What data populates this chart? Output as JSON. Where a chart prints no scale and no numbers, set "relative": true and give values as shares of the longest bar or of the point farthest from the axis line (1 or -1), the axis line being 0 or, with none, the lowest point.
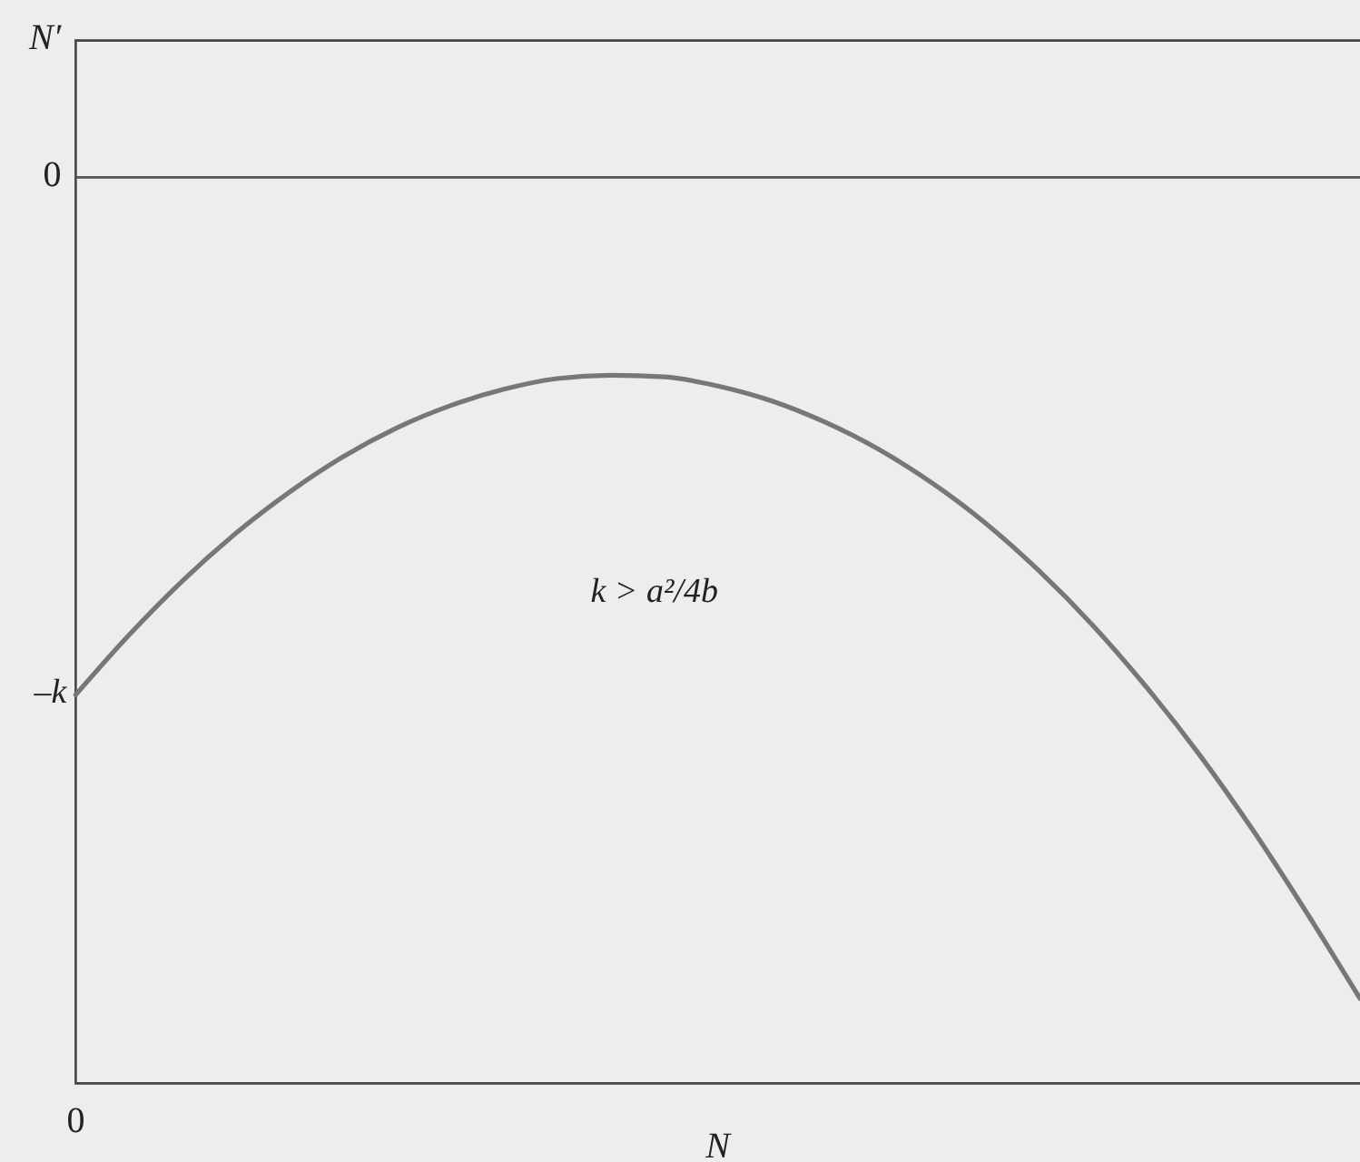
{
  "chart_data": {
    "type": "line",
    "relative": true,
    "xlabel": "N",
    "ylabel": "N′",
    "categories": [
      null,
      null,
      null,
      null,
      null,
      null,
      null,
      null,
      null,
      null,
      null,
      null,
      null,
      null,
      null,
      null,
      null,
      null,
      null,
      null,
      null,
      null,
      null,
      null,
      null
    ],
    "series": [
      {
        "color": "#777777",
        "values": [
          -0.63,
          -0.557,
          -0.491,
          -0.433,
          -0.383,
          -0.34,
          -0.305,
          -0.278,
          -0.258,
          -0.245,
          -0.241,
          -0.243,
          -0.254,
          -0.272,
          -0.298,
          -0.331,
          -0.372,
          -0.421,
          -0.479,
          -0.545,
          -0.62,
          -0.703,
          -0.795,
          -0.895,
          -1
        ]
      }
    ],
    "ref_lines": [
      {
        "axis": "y",
        "value": 0,
        "label": "0",
        "color": "#555555"
      }
    ],
    "annotations": [
      "–k",
      "k > a²/4b",
      "0"
    ]
  }
}
